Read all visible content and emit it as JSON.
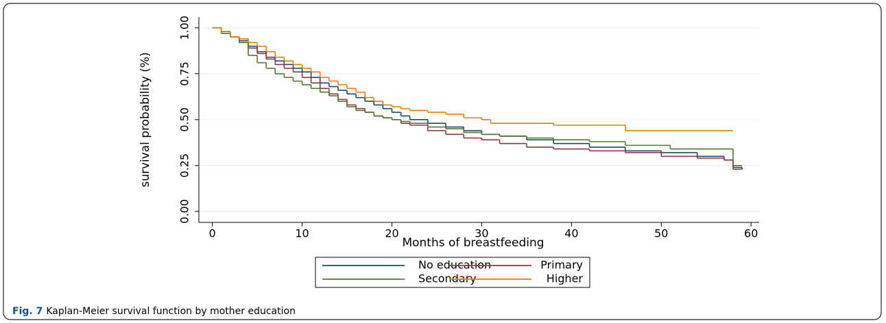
{
  "chart_data": {
    "type": "step",
    "xlabel": "Months of breastfeeding",
    "ylabel": "survival probability (%)",
    "xlim": [
      -1.5,
      60.9
    ],
    "ylim": [
      -0.06,
      1.04
    ],
    "xticks": [
      0,
      10,
      20,
      30,
      40,
      50,
      60
    ],
    "yticks": [
      {
        "value": 0,
        "label": "0.00"
      },
      {
        "value": 0.25,
        "label": "0.25"
      },
      {
        "value": 0.5,
        "label": "0.50"
      },
      {
        "value": 0.75,
        "label": "0.75"
      },
      {
        "value": 1,
        "label": "1.00"
      }
    ],
    "grid": true,
    "series": [
      {
        "name": "No education",
        "color": "#1a476f",
        "x": [
          0,
          1,
          2,
          3,
          4,
          5,
          6,
          7,
          8,
          9,
          10,
          11,
          12,
          13,
          14,
          15,
          16,
          17,
          18,
          19,
          20,
          21,
          22,
          24,
          26,
          28,
          30,
          32,
          35,
          38,
          42,
          46,
          50,
          54,
          57,
          58,
          59
        ],
        "values": [
          1.0,
          0.98,
          0.95,
          0.93,
          0.9,
          0.87,
          0.84,
          0.82,
          0.8,
          0.78,
          0.76,
          0.73,
          0.7,
          0.68,
          0.66,
          0.64,
          0.62,
          0.6,
          0.58,
          0.56,
          0.54,
          0.52,
          0.5,
          0.48,
          0.46,
          0.44,
          0.42,
          0.41,
          0.39,
          0.37,
          0.35,
          0.33,
          0.32,
          0.3,
          0.28,
          0.24,
          0.23
        ]
      },
      {
        "name": "Primary",
        "color": "#90353b",
        "x": [
          0,
          1,
          2,
          3,
          4,
          5,
          6,
          7,
          8,
          9,
          10,
          11,
          12,
          13,
          14,
          15,
          16,
          17,
          18,
          19,
          20,
          21,
          22,
          24,
          26,
          28,
          30,
          32,
          35,
          38,
          42,
          46,
          50,
          54,
          57,
          58,
          59
        ],
        "values": [
          1.0,
          0.97,
          0.95,
          0.92,
          0.89,
          0.86,
          0.83,
          0.8,
          0.78,
          0.76,
          0.73,
          0.7,
          0.67,
          0.64,
          0.61,
          0.58,
          0.56,
          0.54,
          0.52,
          0.51,
          0.5,
          0.48,
          0.47,
          0.44,
          0.42,
          0.4,
          0.39,
          0.37,
          0.35,
          0.34,
          0.33,
          0.32,
          0.3,
          0.29,
          0.28,
          0.23,
          0.23
        ]
      },
      {
        "name": "Secondary",
        "color": "#55752f",
        "x": [
          0,
          1,
          2,
          3,
          4,
          5,
          6,
          7,
          8,
          9,
          10,
          11,
          12,
          13,
          14,
          15,
          16,
          17,
          18,
          19,
          20,
          21,
          22,
          24,
          26,
          28,
          30,
          32,
          35,
          38,
          42,
          46,
          51,
          58,
          59
        ],
        "values": [
          1.0,
          0.97,
          0.95,
          0.92,
          0.85,
          0.81,
          0.78,
          0.75,
          0.73,
          0.71,
          0.69,
          0.67,
          0.65,
          0.63,
          0.6,
          0.57,
          0.55,
          0.54,
          0.52,
          0.51,
          0.5,
          0.49,
          0.48,
          0.46,
          0.45,
          0.43,
          0.42,
          0.41,
          0.4,
          0.39,
          0.38,
          0.36,
          0.34,
          0.25,
          0.25
        ]
      },
      {
        "name": "Higher",
        "color": "#e37e00",
        "x": [
          0,
          1,
          2,
          3,
          4,
          5,
          6,
          7,
          8,
          9,
          10,
          11,
          12,
          13,
          14,
          15,
          16,
          17,
          18,
          19,
          20,
          21,
          22,
          24,
          26,
          28,
          30,
          31,
          38,
          46,
          58
        ],
        "values": [
          1.0,
          0.98,
          0.95,
          0.94,
          0.92,
          0.9,
          0.87,
          0.84,
          0.82,
          0.8,
          0.78,
          0.76,
          0.73,
          0.71,
          0.69,
          0.67,
          0.65,
          0.62,
          0.6,
          0.58,
          0.57,
          0.56,
          0.55,
          0.54,
          0.53,
          0.51,
          0.5,
          0.48,
          0.47,
          0.44,
          0.44
        ]
      }
    ]
  },
  "caption": {
    "label": "Fig. 7",
    "text": "Kaplan-Meier survival function by mother education"
  }
}
